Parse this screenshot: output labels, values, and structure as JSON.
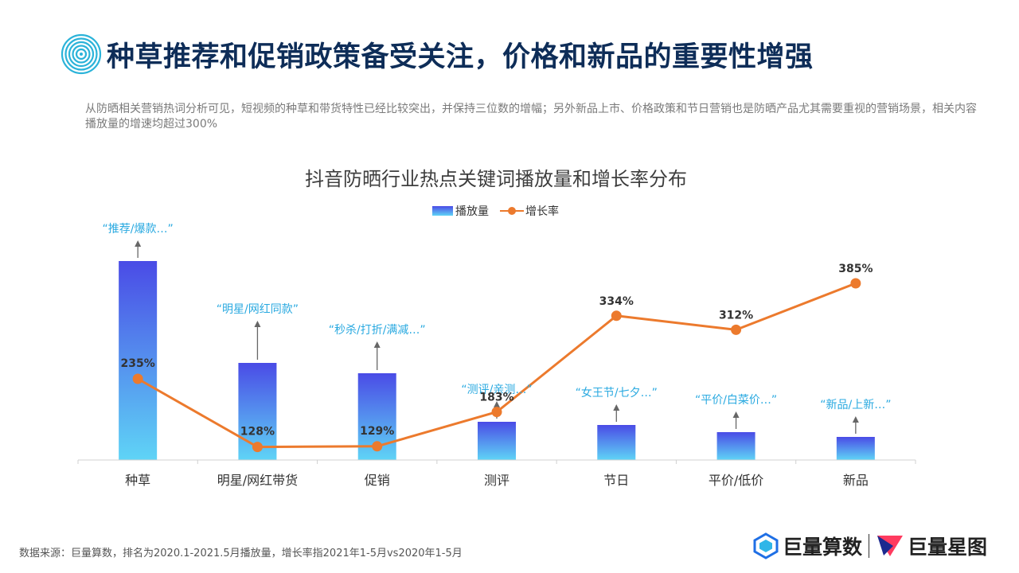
{
  "header": {
    "title": "种草推荐和促销政策备受关注，价格和新品的重要性增强",
    "subtitle": "从防晒相关营销热词分析可见，短视频的种草和带货特性已经比较突出，并保持三位数的增幅；另外新品上市、价格政策和节日营销也是防晒产品尤其需要重视的营销场景，相关内容播放量的增速均超过300%"
  },
  "colors": {
    "title": "#0e2d58",
    "bar_top": "#4a4be6",
    "bar_bottom": "#5fd4f6",
    "line": "#ec7a2d",
    "annotation": "#29a9e0"
  },
  "chart_data": {
    "type": "bar",
    "title": "抖音防晒行业热点关键词播放量和增长率分布",
    "categories": [
      "种草",
      "明星/网红带货",
      "促销",
      "测评",
      "节日",
      "平价/低价",
      "新品"
    ],
    "series": [
      {
        "name": "播放量",
        "type": "bar",
        "values": [
          250,
          122,
          109,
          48,
          44,
          35,
          29
        ]
      },
      {
        "name": "增长率",
        "type": "line",
        "values": [
          235,
          128,
          129,
          183,
          334,
          312,
          385
        ],
        "labels": [
          "235%",
          "128%",
          "129%",
          "183%",
          "334%",
          "312%",
          "385%"
        ]
      }
    ],
    "annotations": [
      "“推荐/爆款…”",
      "“明星/网红同款”",
      "“秒杀/打折/满减…”",
      "“测评/亲测…”",
      "“女王节/七夕…”",
      "“平价/白菜价…”",
      "“新品/上新…”"
    ],
    "legend_position": "top",
    "grid": false
  },
  "footer": {
    "source": "数据来源：巨量算数，排名为2020.1-2021.5月播放量，增长率指2021年1-5月vs2020年1-5月",
    "brand1": "巨量算数",
    "brand2": "巨量星图"
  }
}
